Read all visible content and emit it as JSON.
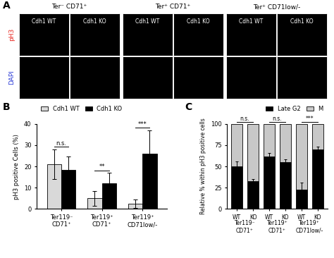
{
  "figure": {
    "panel_A": {
      "panel_label": "A",
      "groups": [
        "Ter⁻ CD71⁺",
        "Ter⁺ CD71⁺",
        "Ter⁺ CD71low/-"
      ],
      "columns": [
        "Cdh1 WT",
        "Cdh1 KO"
      ],
      "rows": [
        {
          "label": "pH3",
          "color": "#e8231c"
        },
        {
          "label": "DAPI",
          "color": "#2b3bd6"
        }
      ]
    }
  },
  "chart_data": [
    {
      "type": "bar",
      "panel_label": "B",
      "categories": [
        "Ter119⁻\nCD71⁺",
        "Ter119⁺\nCD71⁺",
        "Ter119⁺\nCD71low/-"
      ],
      "y_label": "pH3 positive Cells (%)",
      "series": [
        {
          "name": "Cdh1 WT",
          "color": "#d9d9d9",
          "values": [
            21,
            5,
            2.5
          ],
          "errors": [
            7,
            3.5,
            2
          ]
        },
        {
          "name": "Cdh1 KO",
          "color": "#000000",
          "values": [
            18.5,
            12,
            26
          ],
          "errors": [
            6,
            5,
            11
          ]
        }
      ],
      "ylim": [
        0,
        40
      ],
      "yticks": [
        0,
        10,
        20,
        30,
        40
      ],
      "legend": "upper left",
      "annotations": [
        {
          "text": "n.s.",
          "category": 0
        },
        {
          "text": "**",
          "category": 1
        },
        {
          "text": "***",
          "category": 2
        }
      ]
    },
    {
      "type": "bar",
      "panel_label": "C",
      "stacked": true,
      "categories": [
        "WT",
        "KO",
        "WT",
        "KO",
        "WT",
        "KO"
      ],
      "groups": [
        "Ter119⁻\nCD71⁺",
        "Ter119⁺\nCD71⁺",
        "Ter119⁺\nCD71low/-"
      ],
      "y_label": "Relative % within pH3 positive cells",
      "series": [
        {
          "name": "Late G2",
          "color": "#000000",
          "values": [
            50,
            33,
            62,
            55,
            23,
            70
          ],
          "errors": [
            6,
            2,
            4,
            3,
            8,
            3
          ]
        },
        {
          "name": "M",
          "color": "#c8c8c8",
          "values": [
            50,
            67,
            38,
            45,
            77,
            30
          ]
        }
      ],
      "ylim": [
        0,
        100
      ],
      "yticks": [
        0,
        25,
        50,
        75,
        100
      ],
      "legend": "upper right",
      "annotations": [
        {
          "text": "n.s.",
          "group": 0
        },
        {
          "text": "n.s.",
          "group": 1
        },
        {
          "text": "***",
          "group": 2
        }
      ]
    }
  ]
}
